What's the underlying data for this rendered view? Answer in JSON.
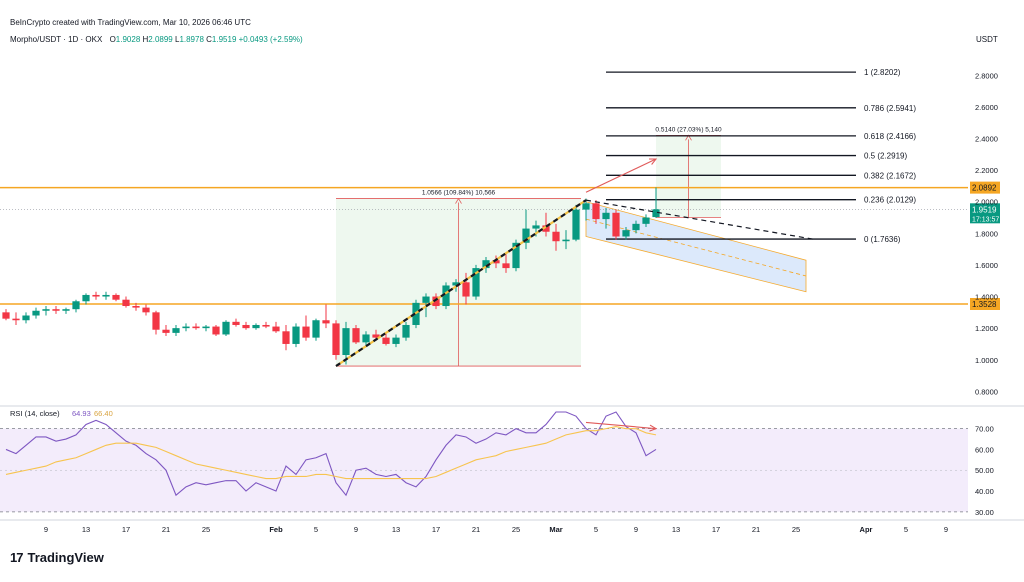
{
  "header": {
    "attribution": "BeInCrypto created with TradingView.com, Mar 10, 2026 06:46 UTC",
    "symbol": "Morpho/USDT · 1D · OKX",
    "o_label": "O",
    "o_value": "1.9028",
    "h_label": "H",
    "h_value": "2.0899",
    "l_label": "L",
    "l_value": "1.8978",
    "c_label": "C",
    "c_value": "1.9519",
    "change": "+0.0493 (+2.59%)",
    "currency": "USDT"
  },
  "brand": {
    "logo": "17",
    "name": "TradingView"
  },
  "colors": {
    "up": "#089981",
    "down": "#f23645",
    "level": "#f5a623",
    "fib": "#131722",
    "range_fill": "#e8f5e9",
    "channel_fill": "#dbe8fb",
    "rsi_line": "#7e57c2",
    "rsi_ma": "#f7c44f",
    "rsi_bg": "#f3ecfb",
    "arrow": "#e05a5a"
  },
  "chart_data": [
    {
      "type": "candlestick",
      "symbol": "Morpho/USDT",
      "interval": "1D",
      "exchange": "OKX",
      "y_scale": "linear",
      "ylim": [
        0.72,
        2.96
      ],
      "y_ticks": [
        "2.8000",
        "2.6000",
        "2.4000",
        "2.2000",
        "2.0000",
        "1.8000",
        "1.6000",
        "1.4000",
        "1.2000",
        "1.0000",
        "0.8000"
      ],
      "x_ticks": [
        {
          "label": "9",
          "date": "2026-01-09"
        },
        {
          "label": "13",
          "date": "2026-01-13"
        },
        {
          "label": "17",
          "date": "2026-01-17"
        },
        {
          "label": "21",
          "date": "2026-01-21"
        },
        {
          "label": "25",
          "date": "2026-01-25"
        },
        {
          "label": "Feb",
          "date": "2026-02-01"
        },
        {
          "label": "5",
          "date": "2026-02-05"
        },
        {
          "label": "9",
          "date": "2026-02-09"
        },
        {
          "label": "13",
          "date": "2026-02-13"
        },
        {
          "label": "17",
          "date": "2026-02-17"
        },
        {
          "label": "21",
          "date": "2026-02-21"
        },
        {
          "label": "25",
          "date": "2026-02-25"
        },
        {
          "label": "Mar",
          "date": "2026-03-01"
        },
        {
          "label": "5",
          "date": "2026-03-05"
        },
        {
          "label": "9",
          "date": "2026-03-09"
        },
        {
          "label": "13",
          "date": "2026-03-13"
        },
        {
          "label": "17",
          "date": "2026-03-17"
        },
        {
          "label": "21",
          "date": "2026-03-21"
        },
        {
          "label": "25",
          "date": "2026-03-25"
        },
        {
          "label": "Apr",
          "date": "2026-04-01"
        },
        {
          "label": "5",
          "date": "2026-04-05"
        },
        {
          "label": "9",
          "date": "2026-04-09"
        }
      ],
      "xlim": [
        "2026-01-05",
        "2026-04-11"
      ],
      "candles": [
        {
          "d": "2026-01-05",
          "o": 1.3,
          "h": 1.32,
          "l": 1.25,
          "c": 1.26
        },
        {
          "d": "2026-01-06",
          "o": 1.26,
          "h": 1.3,
          "l": 1.22,
          "c": 1.25
        },
        {
          "d": "2026-01-07",
          "o": 1.25,
          "h": 1.3,
          "l": 1.23,
          "c": 1.28
        },
        {
          "d": "2026-01-08",
          "o": 1.28,
          "h": 1.33,
          "l": 1.26,
          "c": 1.31
        },
        {
          "d": "2026-01-09",
          "o": 1.31,
          "h": 1.34,
          "l": 1.28,
          "c": 1.32
        },
        {
          "d": "2026-01-10",
          "o": 1.32,
          "h": 1.34,
          "l": 1.29,
          "c": 1.31
        },
        {
          "d": "2026-01-11",
          "o": 1.31,
          "h": 1.33,
          "l": 1.29,
          "c": 1.32
        },
        {
          "d": "2026-01-12",
          "o": 1.32,
          "h": 1.38,
          "l": 1.3,
          "c": 1.37
        },
        {
          "d": "2026-01-13",
          "o": 1.37,
          "h": 1.42,
          "l": 1.35,
          "c": 1.41
        },
        {
          "d": "2026-01-14",
          "o": 1.41,
          "h": 1.43,
          "l": 1.38,
          "c": 1.4
        },
        {
          "d": "2026-01-15",
          "o": 1.4,
          "h": 1.43,
          "l": 1.38,
          "c": 1.41
        },
        {
          "d": "2026-01-16",
          "o": 1.41,
          "h": 1.42,
          "l": 1.37,
          "c": 1.38
        },
        {
          "d": "2026-01-17",
          "o": 1.38,
          "h": 1.4,
          "l": 1.33,
          "c": 1.34
        },
        {
          "d": "2026-01-18",
          "o": 1.34,
          "h": 1.36,
          "l": 1.31,
          "c": 1.33
        },
        {
          "d": "2026-01-19",
          "o": 1.33,
          "h": 1.35,
          "l": 1.28,
          "c": 1.3
        },
        {
          "d": "2026-01-20",
          "o": 1.3,
          "h": 1.31,
          "l": 1.16,
          "c": 1.19
        },
        {
          "d": "2026-01-21",
          "o": 1.19,
          "h": 1.22,
          "l": 1.15,
          "c": 1.17
        },
        {
          "d": "2026-01-22",
          "o": 1.17,
          "h": 1.22,
          "l": 1.15,
          "c": 1.2
        },
        {
          "d": "2026-01-23",
          "o": 1.2,
          "h": 1.23,
          "l": 1.18,
          "c": 1.21
        },
        {
          "d": "2026-01-24",
          "o": 1.21,
          "h": 1.23,
          "l": 1.19,
          "c": 1.2
        },
        {
          "d": "2026-01-25",
          "o": 1.2,
          "h": 1.22,
          "l": 1.18,
          "c": 1.21
        },
        {
          "d": "2026-01-26",
          "o": 1.21,
          "h": 1.22,
          "l": 1.15,
          "c": 1.16
        },
        {
          "d": "2026-01-27",
          "o": 1.16,
          "h": 1.25,
          "l": 1.15,
          "c": 1.24
        },
        {
          "d": "2026-01-28",
          "o": 1.24,
          "h": 1.26,
          "l": 1.21,
          "c": 1.22
        },
        {
          "d": "2026-01-29",
          "o": 1.22,
          "h": 1.24,
          "l": 1.19,
          "c": 1.2
        },
        {
          "d": "2026-01-30",
          "o": 1.2,
          "h": 1.23,
          "l": 1.19,
          "c": 1.22
        },
        {
          "d": "2026-01-31",
          "o": 1.22,
          "h": 1.24,
          "l": 1.2,
          "c": 1.21
        },
        {
          "d": "2026-02-01",
          "o": 1.21,
          "h": 1.24,
          "l": 1.17,
          "c": 1.18
        },
        {
          "d": "2026-02-02",
          "o": 1.18,
          "h": 1.22,
          "l": 1.06,
          "c": 1.1
        },
        {
          "d": "2026-02-03",
          "o": 1.1,
          "h": 1.23,
          "l": 1.08,
          "c": 1.21
        },
        {
          "d": "2026-02-04",
          "o": 1.21,
          "h": 1.28,
          "l": 1.12,
          "c": 1.14
        },
        {
          "d": "2026-02-05",
          "o": 1.14,
          "h": 1.26,
          "l": 1.12,
          "c": 1.25
        },
        {
          "d": "2026-02-06",
          "o": 1.25,
          "h": 1.35,
          "l": 1.2,
          "c": 1.23
        },
        {
          "d": "2026-02-07",
          "o": 1.23,
          "h": 1.25,
          "l": 1.0,
          "c": 1.03
        },
        {
          "d": "2026-02-08",
          "o": 1.03,
          "h": 1.24,
          "l": 0.97,
          "c": 1.2
        },
        {
          "d": "2026-02-09",
          "o": 1.2,
          "h": 1.22,
          "l": 1.1,
          "c": 1.11
        },
        {
          "d": "2026-02-10",
          "o": 1.11,
          "h": 1.18,
          "l": 1.09,
          "c": 1.16
        },
        {
          "d": "2026-02-11",
          "o": 1.16,
          "h": 1.19,
          "l": 1.12,
          "c": 1.14
        },
        {
          "d": "2026-02-12",
          "o": 1.14,
          "h": 1.17,
          "l": 1.09,
          "c": 1.1
        },
        {
          "d": "2026-02-13",
          "o": 1.1,
          "h": 1.16,
          "l": 1.08,
          "c": 1.14
        },
        {
          "d": "2026-02-14",
          "o": 1.14,
          "h": 1.24,
          "l": 1.12,
          "c": 1.22
        },
        {
          "d": "2026-02-15",
          "o": 1.22,
          "h": 1.38,
          "l": 1.2,
          "c": 1.36
        },
        {
          "d": "2026-02-16",
          "o": 1.36,
          "h": 1.42,
          "l": 1.27,
          "c": 1.4
        },
        {
          "d": "2026-02-17",
          "o": 1.4,
          "h": 1.42,
          "l": 1.32,
          "c": 1.34
        },
        {
          "d": "2026-02-18",
          "o": 1.34,
          "h": 1.49,
          "l": 1.32,
          "c": 1.47
        },
        {
          "d": "2026-02-19",
          "o": 1.47,
          "h": 1.51,
          "l": 1.43,
          "c": 1.49
        },
        {
          "d": "2026-02-20",
          "o": 1.49,
          "h": 1.55,
          "l": 1.35,
          "c": 1.4
        },
        {
          "d": "2026-02-21",
          "o": 1.4,
          "h": 1.6,
          "l": 1.38,
          "c": 1.58
        },
        {
          "d": "2026-02-22",
          "o": 1.58,
          "h": 1.65,
          "l": 1.55,
          "c": 1.63
        },
        {
          "d": "2026-02-23",
          "o": 1.63,
          "h": 1.66,
          "l": 1.58,
          "c": 1.61
        },
        {
          "d": "2026-02-24",
          "o": 1.61,
          "h": 1.68,
          "l": 1.55,
          "c": 1.58
        },
        {
          "d": "2026-02-25",
          "o": 1.58,
          "h": 1.76,
          "l": 1.56,
          "c": 1.74
        },
        {
          "d": "2026-02-26",
          "o": 1.74,
          "h": 1.95,
          "l": 1.7,
          "c": 1.83
        },
        {
          "d": "2026-02-27",
          "o": 1.83,
          "h": 1.88,
          "l": 1.78,
          "c": 1.85
        },
        {
          "d": "2026-02-28",
          "o": 1.85,
          "h": 1.93,
          "l": 1.78,
          "c": 1.81
        },
        {
          "d": "2026-03-01",
          "o": 1.81,
          "h": 1.86,
          "l": 1.69,
          "c": 1.75
        },
        {
          "d": "2026-03-02",
          "o": 1.75,
          "h": 1.82,
          "l": 1.7,
          "c": 1.76
        },
        {
          "d": "2026-03-03",
          "o": 1.76,
          "h": 1.98,
          "l": 1.75,
          "c": 1.95
        },
        {
          "d": "2026-03-04",
          "o": 1.95,
          "h": 2.02,
          "l": 1.88,
          "c": 1.99
        },
        {
          "d": "2026-03-05",
          "o": 1.99,
          "h": 2.01,
          "l": 1.86,
          "c": 1.89
        },
        {
          "d": "2026-03-06",
          "o": 1.89,
          "h": 1.96,
          "l": 1.83,
          "c": 1.93
        },
        {
          "d": "2026-03-07",
          "o": 1.93,
          "h": 1.95,
          "l": 1.76,
          "c": 1.78
        },
        {
          "d": "2026-03-08",
          "o": 1.78,
          "h": 1.84,
          "l": 1.76,
          "c": 1.82
        },
        {
          "d": "2026-03-09",
          "o": 1.82,
          "h": 1.88,
          "l": 1.8,
          "c": 1.86
        },
        {
          "d": "2026-03-10",
          "o": 1.86,
          "h": 1.92,
          "l": 1.84,
          "c": 1.9
        },
        {
          "d": "2026-03-11",
          "o": 1.9028,
          "h": 2.0899,
          "l": 1.8978,
          "c": 1.9519
        }
      ],
      "horizontal_levels": [
        {
          "value": 2.0892,
          "label": "2.0892"
        },
        {
          "value": 1.3528,
          "label": "1.3528"
        }
      ],
      "last_price": {
        "value": 1.9519,
        "label": "1.9519",
        "countdown": "17:13:57"
      },
      "fib_levels": [
        {
          "ratio_label": "1 (2.8202)",
          "value": 2.8202
        },
        {
          "ratio_label": "0.786 (2.5941)",
          "value": 2.5941
        },
        {
          "ratio_label": "0.618 (2.4166)",
          "value": 2.4166
        },
        {
          "ratio_label": "0.5 (2.2919)",
          "value": 2.2919
        },
        {
          "ratio_label": "0.382 (2.1672)",
          "value": 2.1672
        },
        {
          "ratio_label": "0.236 (2.0129)",
          "value": 2.0129
        },
        {
          "ratio_label": "0 (1.7636)",
          "value": 1.7636
        }
      ],
      "fib_start": "2026-03-03",
      "fib_end": "2026-03-25",
      "price_ranges": [
        {
          "label": "1.0566 (109.84%) 10,566",
          "from_date": "2026-02-07",
          "to_date": "2026-03-03",
          "low": 0.96,
          "high": 2.02,
          "color": "range"
        },
        {
          "label": "0.5140 (27.03%) 5,140",
          "from_date": "2026-03-11",
          "to_date": "2026-03-17",
          "low": 1.9,
          "high": 2.42,
          "color": "range"
        }
      ],
      "trendlines": [
        {
          "kind": "rise",
          "from": [
            "2026-02-07",
            0.96
          ],
          "to": [
            "2026-03-04",
            2.01
          ],
          "style": "dashed-two-tone"
        },
        {
          "kind": "descending",
          "from": [
            "2026-03-04",
            2.01
          ],
          "to": [
            "2026-03-27",
            1.76
          ],
          "style": "dashed"
        }
      ],
      "channel": {
        "upper_from": [
          "2026-03-04",
          2.0
        ],
        "upper_to": [
          "2026-03-26",
          1.63
        ],
        "lower_from": [
          "2026-03-04",
          1.78
        ],
        "lower_to": [
          "2026-03-26",
          1.43
        ]
      },
      "arrows": [
        {
          "from": [
            "2026-03-04",
            2.06
          ],
          "to": [
            "2026-03-11",
            2.27
          ]
        }
      ]
    },
    {
      "type": "line",
      "title": "RSI (14, close)",
      "series": [
        {
          "name": "RSI",
          "value_label": "64.93",
          "values": [
            60,
            58,
            62,
            66,
            66,
            64,
            65,
            67,
            72,
            74,
            72,
            68,
            64,
            62,
            58,
            55,
            50,
            38,
            42,
            44,
            43,
            44,
            45,
            45,
            40,
            44,
            42,
            40,
            52,
            48,
            55,
            56,
            58,
            44,
            38,
            50,
            51,
            48,
            47,
            48,
            44,
            42,
            47,
            55,
            62,
            67,
            66,
            63,
            65,
            68,
            67,
            70,
            68,
            68,
            72,
            78,
            78,
            76,
            70,
            67,
            76,
            78,
            71,
            68,
            57,
            60,
            62,
            64.93
          ]
        },
        {
          "name": "RSI MA",
          "value_label": "66.40",
          "values": [
            48,
            49,
            50,
            51,
            52,
            54,
            55,
            56,
            58,
            60,
            62,
            63,
            63,
            63,
            62,
            61,
            59,
            57,
            55,
            53,
            52,
            51,
            50,
            49,
            48,
            47,
            46,
            46,
            47,
            47,
            47,
            48,
            48,
            47,
            46,
            46,
            46,
            46,
            46,
            46,
            46,
            46,
            46,
            47,
            49,
            51,
            53,
            55,
            56,
            57,
            59,
            60,
            61,
            62,
            63,
            65,
            67,
            68,
            69,
            69,
            70,
            71,
            70,
            70,
            68,
            67,
            66,
            66.4
          ]
        }
      ],
      "ylim": [
        28,
        78
      ],
      "y_ticks": [
        "70.00",
        "60.00",
        "50.00",
        "40.00",
        "30.00"
      ],
      "bands": [
        70,
        30
      ],
      "arrows": [
        {
          "from": [
            "2026-03-04",
            73
          ],
          "to": [
            "2026-03-11",
            70
          ]
        }
      ]
    }
  ]
}
